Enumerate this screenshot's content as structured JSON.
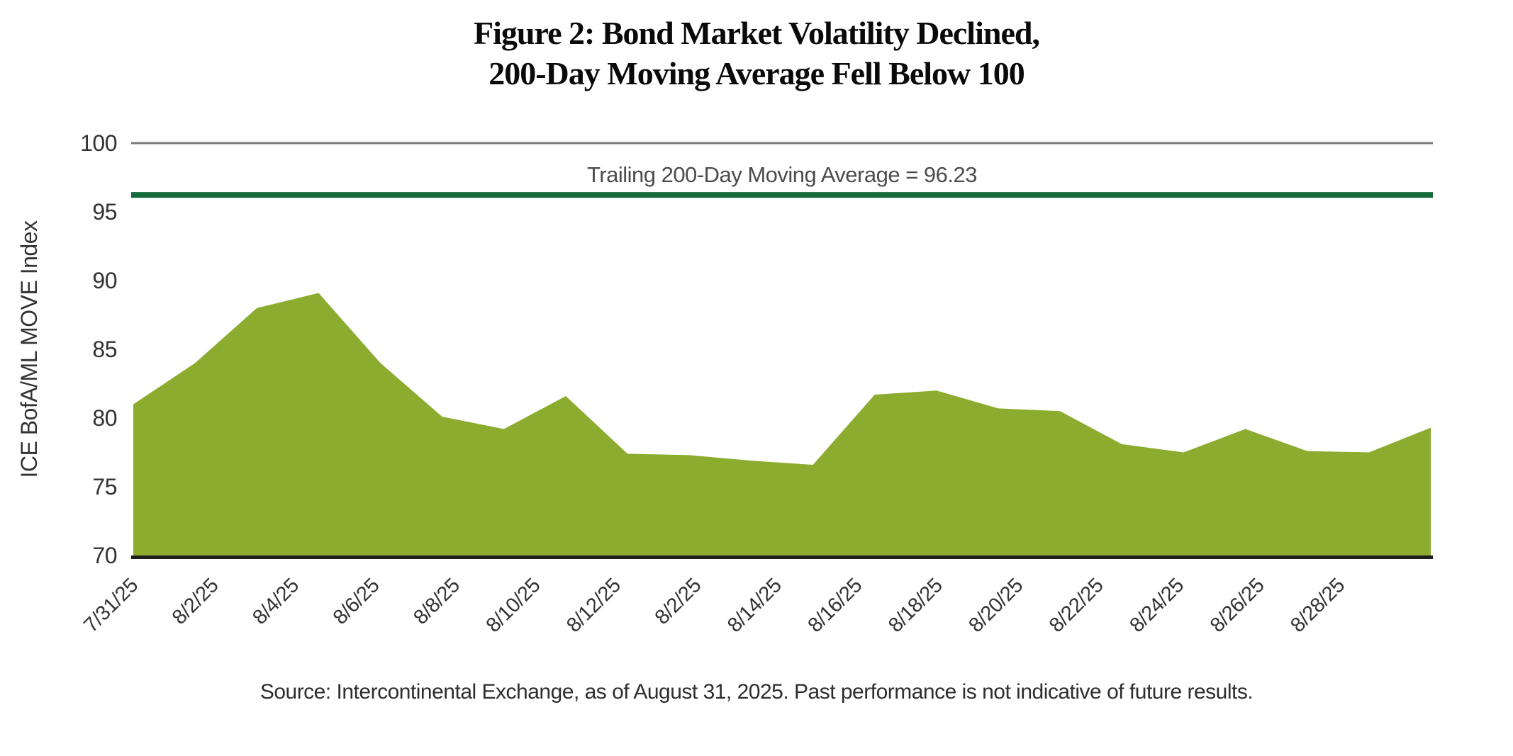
{
  "title": {
    "line1": "Figure 2: Bond Market Volatility Declined,",
    "line2": "200-Day Moving Average Fell Below 100"
  },
  "source": "Source: Intercontinental Exchange, as of August 31, 2025. Past performance is not indicative of future results.",
  "chart_data": {
    "type": "area",
    "title": "Figure 2: Bond Market Volatility Declined, 200-Day Moving Average Fell Below 100",
    "ylabel": "ICE BofA/ML MOVE Index",
    "ylim": [
      70,
      100
    ],
    "yticks": [
      100,
      95,
      90,
      85,
      80,
      75,
      70
    ],
    "grid": "single top gridline at 100 only",
    "legend_position": "none",
    "x_tick_labels": [
      "7/31/25",
      "8/2/25",
      "8/4/25",
      "8/6/25",
      "8/8/25",
      "8/10/25",
      "8/12/25",
      "8/2/25",
      "8/14/25",
      "8/16/25",
      "8/18/25",
      "8/20/25",
      "8/22/25",
      "8/24/25",
      "8/26/25",
      "8/28/25"
    ],
    "series": [
      {
        "name": "ICE BofA/ML MOVE Index",
        "values": [
          81.0,
          84.0,
          88.0,
          89.1,
          84.0,
          80.1,
          79.2,
          81.6,
          77.4,
          77.3,
          76.9,
          76.6,
          81.7,
          82.0,
          80.7,
          80.5,
          78.1,
          77.5,
          79.2,
          77.6,
          77.5,
          79.3
        ]
      }
    ],
    "moving_average": {
      "label": "Trailing 200-Day Moving Average = 96.23",
      "value": 96.23
    },
    "colors": {
      "area": "#8BAC2E",
      "ma_line": "#166B3C",
      "top_line": "#7a7a7a",
      "baseline": "#1f1f1f",
      "text": "#333333"
    }
  }
}
